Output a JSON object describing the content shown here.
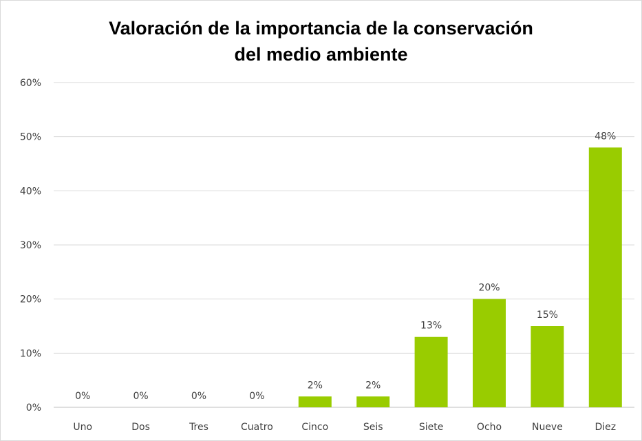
{
  "chart_data": {
    "type": "bar",
    "title_lines": [
      "Valoración de la importancia de la conservación",
      "del medio ambiente"
    ],
    "categories": [
      "Uno",
      "Dos",
      "Tres",
      "Cuatro",
      "Cinco",
      "Seis",
      "Siete",
      "Ocho",
      "Nueve",
      "Diez"
    ],
    "values": [
      0,
      0,
      0,
      0,
      2,
      2,
      13,
      20,
      15,
      48
    ],
    "data_labels": [
      "0%",
      "0%",
      "0%",
      "0%",
      "2%",
      "2%",
      "13%",
      "20%",
      "15%",
      "48%"
    ],
    "yticks": [
      "0%",
      "10%",
      "20%",
      "30%",
      "40%",
      "50%",
      "60%"
    ],
    "ylim": [
      0,
      60
    ],
    "grid": true,
    "bar_color": "#99cc00",
    "xlabel": "",
    "ylabel": ""
  }
}
